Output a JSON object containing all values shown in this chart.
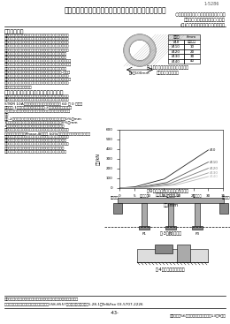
{
  "title": "ゴム鋼併用型耐震緩衝装置をもつ免震橋の地震応答解析",
  "page_number": "1-5286",
  "author_lines": [
    "○武蔵工業大学　学生会員　高橋　士一",
    "武蔵工業大学　正会員　細川　勝",
    "(株)住建製作所　正会員　藤田　健"
  ],
  "section1_title": "１．はじめに",
  "section1_text": "　本研究では免震橋止装置の緩衝材として，鋼管を用いること\nに着目し，その基礎特性を実験及び解析によって検討した．そ\nの結果，鋼管はエネルギー吸収効果，復元力の発揮効果が大き\nく，緩衝材として期待できることがわかった １）．さらに免震\n橋に直交体ゴムスは鋼管を緩衝装置として設置した場合の効果\nを確認するために数値応答解析を行ったところ，鋼管を単独\nで緩衝装置として用いると基礎連の制御力が急速に増大して\nしまう欠点が確認された ２）．そこで，鋼管の基礎連の応力組合\n相力を抑えるために，ゴムと鋼管を使用した緩衝装置を考案し，\n静的な組試験を行い，その結果，鋼管の外側にゴム管を巻き\n付形式の緩衝装置では，すでの部材の基本材性から荷重-変位関\n係を精度良く予測することが可能であり，エネルギー吸収性能\nも大きいことがわかった．これを踏まえた上でゴム・鋼管併用型\n緩衝装置を有する免震橋の動的応答解析を行い，その実用性を\nさらに有効性を確認した．",
  "section2_title": "２．ゴム鋼併用型耐震緩衝装置について",
  "section2_text": "　本研究で使定しているゴム鋼併用型耐震緩衝装置は，鋼管の\n外側にゴム管を巻いた筒形式の緩衝装置であり，鋼管の材料は\nSTKM 10A，ゴム材料はクロロプレンゴム硬度 60 比 0 として\nいる．図-1に寸法及び形状を示し，図-2に実験より得られた荷\n重-変位関係を示す．なお，以後のための鋼管のみの事例も行っ\nた．\n　図-2より，荷重形状由特性は以下の３つに分けられる．0%（mm\n1）領域まではゴムのみが変形しており，剛性は低い．0%（mm\n3）領域の次後はゴム座には比較，筒状物ゴムゴム管が薄\nいほど上昇している．また鋼管の剛状体の弾性をゴムの影響を\n受けて上昇する．（Phase-Ⅲ）荷重 50%以降の性能では，鋼管は完全に\n圧縮するが，過大荷重によってれるゴムの圧縮後の荷重と両重\n面が生じる．また，鋼管のみと比べ重量が大きく，側板曲の\n荷重の上昇を抑制することからエネルギー吸収性能は高いと言\nえる．更に，鋼管の圧縮後もゴム弾性によってある程度の\nエネルギー吸収性能と耐震整性を保持できると考えられる．",
  "fig1_title": "図-1　ゴム鋼併用型耐震緩衝装置の\n　　　寸法及び形状",
  "fig2_title": "図-2　ゴム鋼併用型耐震緩衝装置の\n　　　荷重-変位関係",
  "fig3_title": "図-3　解析モデル",
  "fig4_title": "図-4　橋台部の模擬装置",
  "table_headers": [
    "試験体",
    "t/mm"
  ],
  "table_rows": [
    [
      "Ø-0",
      "鋼管のみ"
    ],
    [
      "Ø-10",
      "10"
    ],
    [
      "Ø-20",
      "20"
    ],
    [
      "Ø-30",
      "30"
    ],
    [
      "Ø-40",
      "40"
    ]
  ],
  "keywords_label": "キーワード：緩衝装置，ゴム管，鋼管，耐衝撃，免震橋，動的応答解析",
  "contact_label": "連絡先：武蔵工業大学工学部土木工学科　〒158-8557　東京都世田谷区玉堤1-28-1　Tel&Fax 03-5707-2226",
  "bottom_text": "土木学会第56回年次学術講演会（平成13年9月）",
  "page_bottom": "-43-",
  "background_color": "#ffffff",
  "text_color": "#000000",
  "gray_color": "#888888",
  "light_gray": "#cccccc"
}
